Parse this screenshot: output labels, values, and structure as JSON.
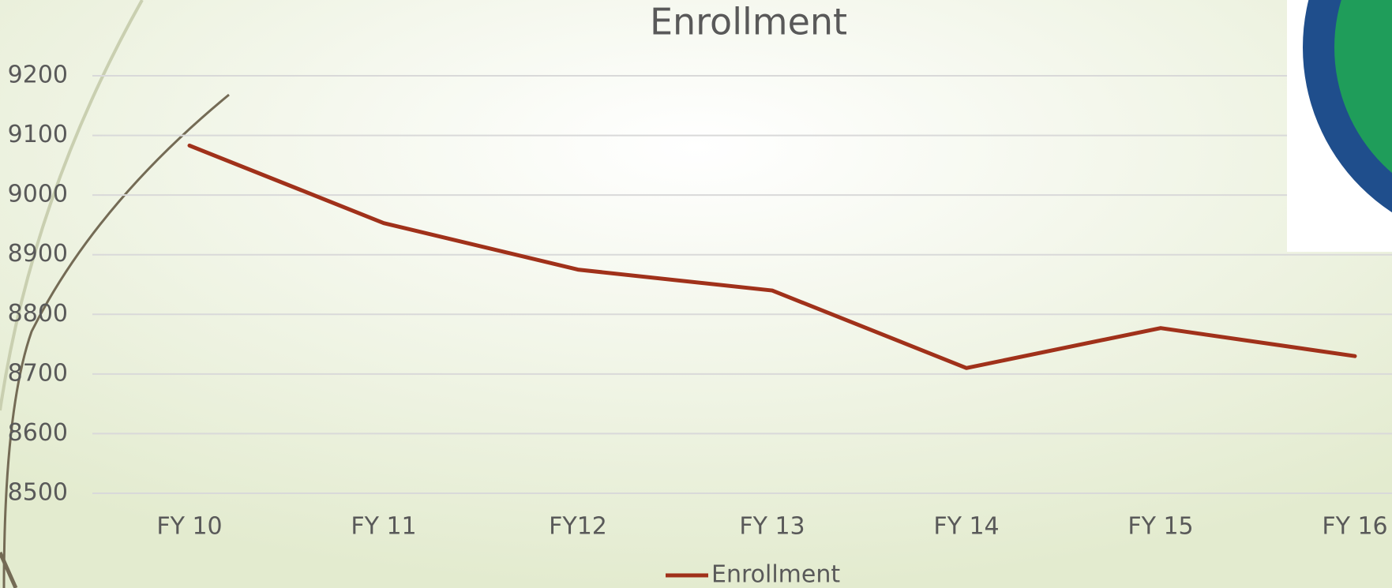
{
  "chart_data": {
    "type": "line",
    "title": "Enrollment",
    "categories": [
      "FY 10",
      "FY 11",
      "FY12",
      "FY 13",
      "FY 14",
      "FY 15",
      "FY 16"
    ],
    "series": [
      {
        "name": "Enrollment",
        "color": "#a0311a",
        "values": [
          9083,
          8953,
          8875,
          8840,
          8710,
          8777,
          8730
        ]
      }
    ],
    "ylim": [
      8500,
      9200
    ],
    "yticks": [
      8500,
      8600,
      8700,
      8800,
      8900,
      9000,
      9100,
      9200
    ],
    "grid": true,
    "legend": "bottom"
  }
}
